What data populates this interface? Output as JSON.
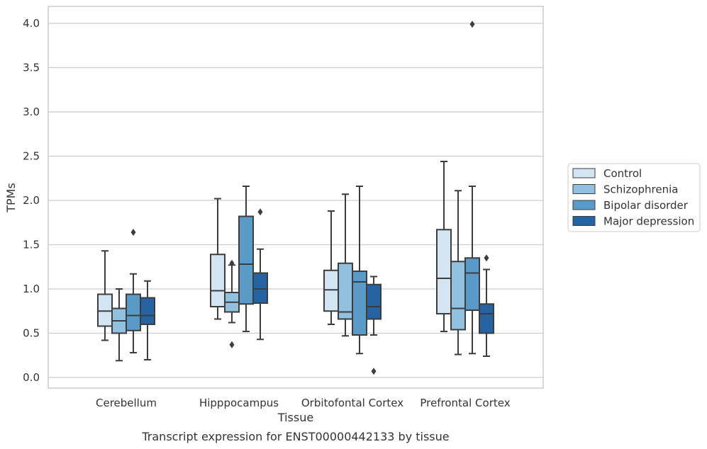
{
  "chart_data": {
    "type": "box",
    "xlabel": "Tissue",
    "ylabel": "TPMs",
    "caption": "Transcript expression for ENST00000442133 by tissue",
    "ylim": [
      -0.12,
      4.2
    ],
    "yticks": [
      "0.0",
      "0.5",
      "1.0",
      "1.5",
      "2.0",
      "2.5",
      "3.0",
      "3.5",
      "4.0"
    ],
    "grid": "horizontal",
    "legend_position": "right",
    "categories": [
      "Cerebellum",
      "Hipppocampus",
      "Orbitofontal Cortex",
      "Prefrontal Cortex"
    ],
    "series": [
      {
        "name": "Control",
        "color": "#d3e4f3",
        "boxes": [
          {
            "whislo": 0.42,
            "q1": 0.58,
            "med": 0.75,
            "q3": 0.94,
            "whishi": 1.43,
            "fliers": []
          },
          {
            "whislo": 0.66,
            "q1": 0.8,
            "med": 0.98,
            "q3": 1.39,
            "whishi": 2.02,
            "fliers": []
          },
          {
            "whislo": 0.6,
            "q1": 0.75,
            "med": 0.99,
            "q3": 1.21,
            "whishi": 1.88,
            "fliers": []
          },
          {
            "whislo": 0.52,
            "q1": 0.72,
            "med": 1.12,
            "q3": 1.67,
            "whishi": 2.44,
            "fliers": []
          }
        ]
      },
      {
        "name": "Schizophrenia",
        "color": "#92c0df",
        "boxes": [
          {
            "whislo": 0.19,
            "q1": 0.5,
            "med": 0.64,
            "q3": 0.78,
            "whishi": 1.0,
            "fliers": []
          },
          {
            "whislo": 0.62,
            "q1": 0.74,
            "med": 0.85,
            "q3": 0.96,
            "whishi": 1.27,
            "fliers": [
              0.37,
              1.29
            ]
          },
          {
            "whislo": 0.47,
            "q1": 0.66,
            "med": 0.74,
            "q3": 1.29,
            "whishi": 2.07,
            "fliers": []
          },
          {
            "whislo": 0.26,
            "q1": 0.54,
            "med": 0.78,
            "q3": 1.31,
            "whishi": 2.11,
            "fliers": []
          }
        ]
      },
      {
        "name": "Bipolar disorder",
        "color": "#5a9ac8",
        "boxes": [
          {
            "whislo": 0.28,
            "q1": 0.53,
            "med": 0.7,
            "q3": 0.94,
            "whishi": 1.17,
            "fliers": [
              1.64
            ]
          },
          {
            "whislo": 0.52,
            "q1": 0.83,
            "med": 1.28,
            "q3": 1.82,
            "whishi": 2.16,
            "fliers": []
          },
          {
            "whislo": 0.27,
            "q1": 0.48,
            "med": 1.08,
            "q3": 1.2,
            "whishi": 2.16,
            "fliers": []
          },
          {
            "whislo": 0.27,
            "q1": 0.76,
            "med": 1.18,
            "q3": 1.35,
            "whishi": 2.16,
            "fliers": [
              3.99
            ]
          }
        ]
      },
      {
        "name": "Major depression",
        "color": "#2563a2",
        "boxes": [
          {
            "whislo": 0.2,
            "q1": 0.6,
            "med": 0.7,
            "q3": 0.9,
            "whishi": 1.09,
            "fliers": []
          },
          {
            "whislo": 0.43,
            "q1": 0.84,
            "med": 1.0,
            "q3": 1.18,
            "whishi": 1.45,
            "fliers": [
              1.87
            ]
          },
          {
            "whislo": 0.48,
            "q1": 0.66,
            "med": 0.8,
            "q3": 1.05,
            "whishi": 1.14,
            "fliers": [
              0.07
            ]
          },
          {
            "whislo": 0.24,
            "q1": 0.5,
            "med": 0.72,
            "q3": 0.83,
            "whishi": 1.22,
            "fliers": [
              1.35
            ]
          }
        ]
      }
    ]
  }
}
